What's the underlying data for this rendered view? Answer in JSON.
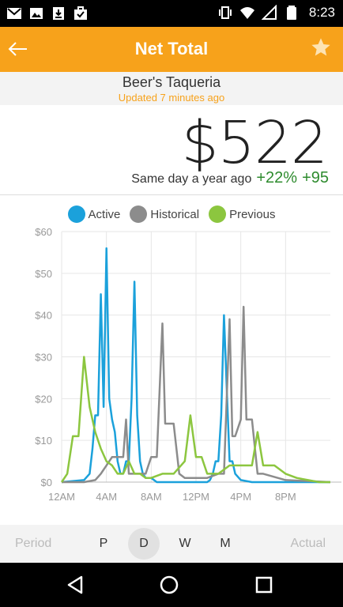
{
  "status_bar": {
    "time": "8:23",
    "left_icons": [
      "gmail-icon",
      "image-icon",
      "download-icon",
      "briefcase-check-icon"
    ],
    "right_icons": [
      "vibrate-icon",
      "wifi-icon",
      "signal-icon",
      "battery-icon"
    ]
  },
  "app_bar": {
    "title": "Net Total",
    "back_icon": "arrow-left-icon",
    "star_icon": "star-icon"
  },
  "location": {
    "name": "Beer's Taqueria",
    "updated": "Updated 7 minutes ago"
  },
  "summary": {
    "total": "$522",
    "comparison_label": "Same day a year ago",
    "percent_change": "+22%",
    "amount_change": "+95"
  },
  "colors": {
    "accent": "#F7A21B",
    "active": "#1BA1DB",
    "historical": "#8C8C8C",
    "previous": "#8CC63F",
    "positive": "#2E8B2E"
  },
  "chart_data": {
    "type": "line",
    "legend": [
      "Active",
      "Historical",
      "Previous"
    ],
    "legend_position": "top-center",
    "y_ticks": [
      "$0",
      "$10",
      "$20",
      "$30",
      "$40",
      "$50",
      "$60"
    ],
    "x_ticks": [
      "12AM",
      "4AM",
      "8AM",
      "12PM",
      "4PM",
      "8PM"
    ],
    "ylim": [
      0,
      60
    ],
    "xlim": [
      0,
      24
    ],
    "grid": true,
    "series": [
      {
        "name": "Active",
        "color": "#1BA1DB",
        "x": [
          0,
          2,
          2.5,
          2.75,
          3,
          3.25,
          3.5,
          3.75,
          4,
          4.25,
          4.5,
          4.75,
          5,
          5.25,
          5.5,
          5.75,
          6,
          6.25,
          6.5,
          6.75,
          7,
          7.25,
          7.5,
          7.75,
          8,
          8.25,
          8.5,
          9,
          11,
          12,
          13,
          13.25,
          13.5,
          13.75,
          14,
          14.25,
          14.5,
          14.75,
          15,
          15.25,
          15.5,
          16,
          17,
          20,
          24
        ],
        "y": [
          0,
          0.5,
          2,
          8,
          16,
          16,
          45,
          18,
          56,
          20,
          15,
          12,
          5,
          2,
          2,
          5,
          5,
          20,
          48,
          16,
          5,
          2,
          1,
          1,
          1,
          0.5,
          0,
          0,
          0,
          0,
          0,
          0.5,
          2,
          5,
          5,
          16,
          40,
          22,
          5,
          5,
          2,
          0.5,
          0,
          0,
          0
        ]
      },
      {
        "name": "Historical",
        "color": "#8C8C8C",
        "x": [
          0,
          2,
          3,
          3.5,
          4,
          4.5,
          5,
          5.5,
          5.75,
          6,
          6.5,
          7,
          7.5,
          8,
          8.5,
          9,
          9.25,
          9.5,
          10,
          10.5,
          11,
          12,
          13,
          14,
          14.5,
          15,
          15.25,
          15.5,
          16,
          16.25,
          16.5,
          17,
          17.5,
          18,
          20,
          24
        ],
        "y": [
          0,
          0,
          0.5,
          2,
          4,
          6,
          6,
          6,
          15,
          2,
          2,
          2,
          2,
          6,
          6,
          38,
          14,
          14,
          14,
          2,
          1,
          1,
          1,
          2,
          2,
          39,
          11,
          11,
          15,
          42,
          15,
          15,
          2,
          2,
          0.5,
          0
        ]
      },
      {
        "name": "Previous",
        "color": "#8CC63F",
        "x": [
          0,
          0.5,
          1,
          1.5,
          2,
          2.5,
          3,
          3.5,
          4,
          4.5,
          5,
          5.5,
          6,
          6.5,
          7,
          7.5,
          8,
          9,
          10,
          11,
          11.5,
          12,
          12.5,
          13,
          14,
          15,
          16,
          17,
          17.5,
          18,
          19,
          20,
          21,
          22,
          23,
          24
        ],
        "y": [
          0,
          2,
          11,
          11,
          30,
          18,
          12,
          8,
          5,
          4,
          2,
          2,
          5,
          2,
          2,
          1,
          1,
          2,
          2,
          5,
          16,
          6,
          6,
          2,
          2,
          4,
          4,
          4,
          12,
          4,
          4,
          2,
          1,
          0.5,
          0,
          0
        ]
      }
    ]
  },
  "period_bar": {
    "left_label": "Period",
    "right_label": "Actual",
    "options": [
      "P",
      "D",
      "W",
      "M"
    ],
    "selected": "D"
  },
  "nav_bar": {
    "icons": [
      "back-triangle-icon",
      "home-circle-icon",
      "recents-square-icon"
    ]
  }
}
